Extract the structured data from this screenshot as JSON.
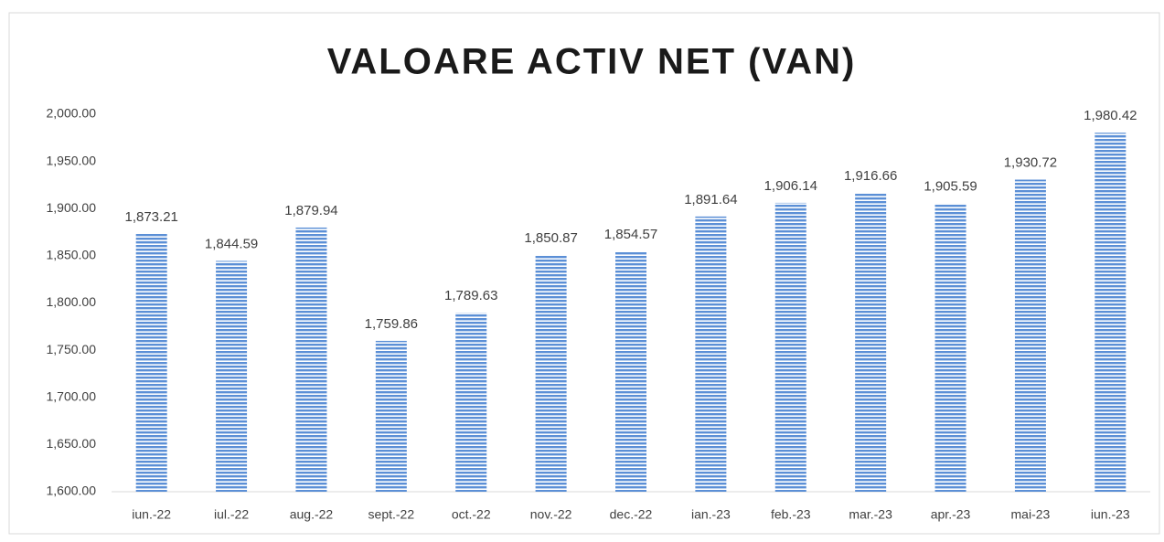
{
  "chart_data": {
    "type": "bar",
    "title": "VALOARE ACTIV NET (VAN)",
    "categories": [
      "iun.-22",
      "iul.-22",
      "aug.-22",
      "sept.-22",
      "oct.-22",
      "nov.-22",
      "dec.-22",
      "ian.-23",
      "feb.-23",
      "mar.-23",
      "apr.-23",
      "mai-23",
      "iun.-23"
    ],
    "values": [
      1873.21,
      1844.59,
      1879.94,
      1759.86,
      1789.63,
      1850.87,
      1854.57,
      1891.64,
      1906.14,
      1916.66,
      1905.59,
      1930.72,
      1980.42
    ],
    "value_labels": [
      "1,873.21",
      "1,844.59",
      "1,879.94",
      "1,759.86",
      "1,789.63",
      "1,850.87",
      "1,854.57",
      "1,891.64",
      "1,906.14",
      "1,916.66",
      "1,905.59",
      "1,930.72",
      "1,980.42"
    ],
    "color": "#5b8fd6",
    "ylim": [
      1600,
      2000
    ],
    "yticks": [
      {
        "value": 1600,
        "label": "1,600.00"
      },
      {
        "value": 1650,
        "label": "1,650.00"
      },
      {
        "value": 1700,
        "label": "1,700.00"
      },
      {
        "value": 1750,
        "label": "1,750.00"
      },
      {
        "value": 1800,
        "label": "1,800.00"
      },
      {
        "value": 1850,
        "label": "1,850.00"
      },
      {
        "value": 1900,
        "label": "1,900.00"
      },
      {
        "value": 1950,
        "label": "1,950.00"
      },
      {
        "value": 2000,
        "label": "2,000.00"
      }
    ],
    "grid": false
  }
}
